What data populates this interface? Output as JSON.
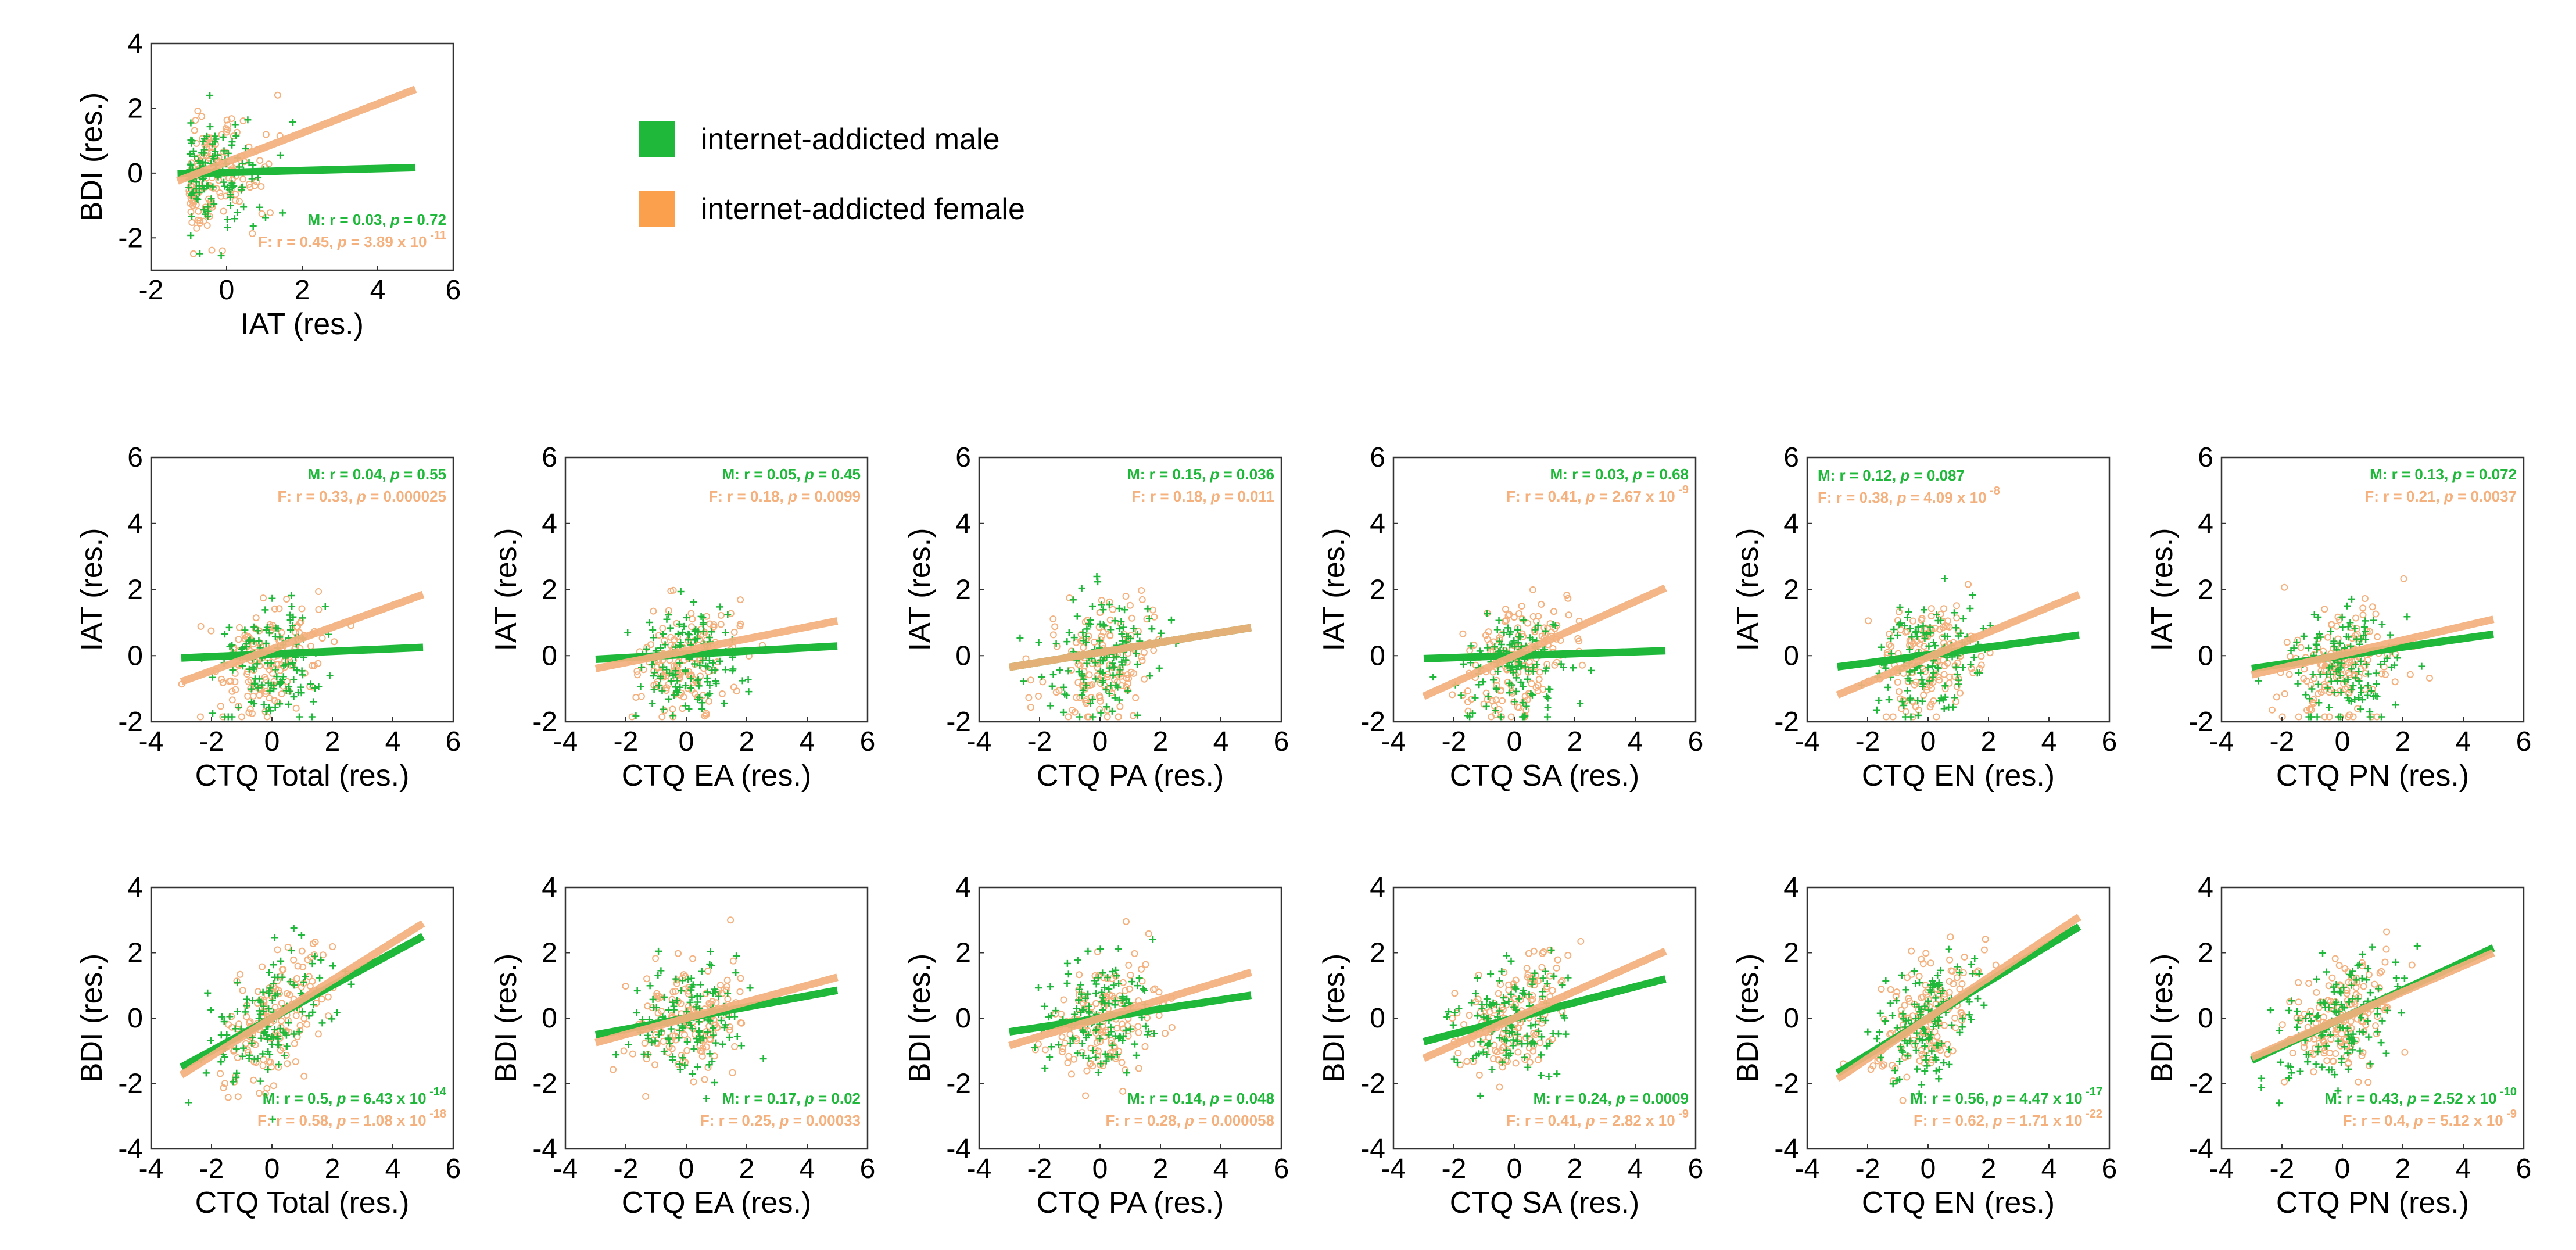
{
  "legend": {
    "male_label": "internet-addicted male",
    "female_label": "internet-addicted female",
    "male_color": "#1fb83a",
    "female_color": "#f4b07d",
    "swatch_female_color": "#fba04c"
  },
  "chart_data": [
    {
      "type": "scatter",
      "id": "p00",
      "xlabel": "IAT (res.)",
      "ylabel": "BDI (res.)",
      "xlim": [
        -2,
        6
      ],
      "ylim": [
        -3,
        4
      ],
      "xticks": [
        "-2",
        "0",
        "2",
        "4",
        "6"
      ],
      "yticks": [
        "-2",
        "0",
        "2",
        "4"
      ],
      "stats": {
        "position": "bottom-right",
        "male": {
          "prefix": "M: r = 0.03,  ",
          "p": "p",
          "value": " = 0.72",
          "exp": ""
        },
        "female": {
          "prefix": "F: r = 0.45,  ",
          "p": "p",
          "value": " = 3.89 x 10",
          "exp": "-11"
        }
      },
      "series": [
        {
          "name": "internet-addicted male",
          "line": [
            0.02,
            0.03
          ]
        },
        {
          "name": "internet-addicted female",
          "line": [
            0.34,
            0.45
          ]
        }
      ]
    },
    {
      "type": "scatter",
      "id": "p10",
      "xlabel": "CTQ Total (res.)",
      "ylabel": "IAT (res.)",
      "xlim": [
        -4,
        6
      ],
      "ylim": [
        -2,
        6
      ],
      "xticks": [
        "-4",
        "-2",
        "0",
        "2",
        "4",
        "6"
      ],
      "yticks": [
        "-2",
        "0",
        "2",
        "4",
        "6"
      ],
      "stats": {
        "position": "top-right",
        "male": {
          "prefix": "M: r = 0.04,  ",
          "p": "p",
          "value": " = 0.55",
          "exp": ""
        },
        "female": {
          "prefix": "F: r = 0.33,  ",
          "p": "p",
          "value": " = 0.000025",
          "exp": ""
        }
      },
      "series": [
        {
          "name": "internet-addicted male",
          "line": [
            0.05,
            0.04
          ]
        },
        {
          "name": "internet-addicted female",
          "line": [
            0.2,
            0.33
          ]
        }
      ]
    },
    {
      "type": "scatter",
      "id": "p11",
      "xlabel": "CTQ EA (res.)",
      "ylabel": "IAT (res.)",
      "xlim": [
        -4,
        6
      ],
      "ylim": [
        -2,
        6
      ],
      "xticks": [
        "-4",
        "-2",
        "0",
        "2",
        "4",
        "6"
      ],
      "yticks": [
        "-2",
        "0",
        "2",
        "4",
        "6"
      ],
      "stats": {
        "position": "top-right",
        "male": {
          "prefix": "M: r = 0.05,  ",
          "p": "p",
          "value": " = 0.45",
          "exp": ""
        },
        "female": {
          "prefix": "F: r = 0.18,  ",
          "p": "p",
          "value": " = 0.0099",
          "exp": ""
        }
      },
      "series": [
        {
          "name": "internet-addicted male",
          "line": [
            0.04,
            0.05
          ]
        },
        {
          "name": "internet-addicted female",
          "line": [
            0.15,
            0.18
          ]
        }
      ]
    },
    {
      "type": "scatter",
      "id": "p12",
      "xlabel": "CTQ PA (res.)",
      "ylabel": "IAT (res.)",
      "xlim": [
        -4,
        6
      ],
      "ylim": [
        -2,
        6
      ],
      "xticks": [
        "-4",
        "-2",
        "0",
        "2",
        "4",
        "6"
      ],
      "yticks": [
        "-2",
        "0",
        "2",
        "4",
        "6"
      ],
      "stats": {
        "position": "top-right",
        "male": {
          "prefix": "M: r = 0.15,  ",
          "p": "p",
          "value": " = 0.036",
          "exp": ""
        },
        "female": {
          "prefix": "F: r = 0.18,  ",
          "p": "p",
          "value": " = 0.011",
          "exp": ""
        }
      },
      "series": [
        {
          "name": "internet-addicted male",
          "line": [
            0.1,
            0.15
          ]
        },
        {
          "name": "internet-addicted female",
          "line": [
            0.1,
            0.15
          ]
        }
      ]
    },
    {
      "type": "scatter",
      "id": "p13",
      "xlabel": "CTQ SA (res.)",
      "ylabel": "IAT (res.)",
      "xlim": [
        -4,
        6
      ],
      "ylim": [
        -2,
        6
      ],
      "xticks": [
        "-4",
        "-2",
        "0",
        "2",
        "4",
        "6"
      ],
      "yticks": [
        "-2",
        "0",
        "2",
        "4",
        "6"
      ],
      "stats": {
        "position": "top-right",
        "male": {
          "prefix": "M: r = 0.03,  ",
          "p": "p",
          "value": " = 0.68",
          "exp": ""
        },
        "female": {
          "prefix": "F: r = 0.41,  ",
          "p": "p",
          "value": " = 2.67 x 10",
          "exp": "-9"
        }
      },
      "series": [
        {
          "name": "internet-addicted male",
          "line": [
            0.0,
            0.03
          ]
        },
        {
          "name": "internet-addicted female",
          "line": [
            0.0,
            0.41
          ]
        }
      ]
    },
    {
      "type": "scatter",
      "id": "p14",
      "xlabel": "CTQ EN (res.)",
      "ylabel": "IAT (res.)",
      "xlim": [
        -4,
        6
      ],
      "ylim": [
        -2,
        6
      ],
      "xticks": [
        "-4",
        "-2",
        "0",
        "2",
        "4",
        "6"
      ],
      "yticks": [
        "-2",
        "0",
        "2",
        "4",
        "6"
      ],
      "stats": {
        "position": "top-left",
        "male": {
          "prefix": "M: r = 0.12,  ",
          "p": "p",
          "value": " = 0.087",
          "exp": ""
        },
        "female": {
          "prefix": "F: r = 0.38,  ",
          "p": "p",
          "value": " = 4.09 x 10",
          "exp": "-8"
        }
      },
      "series": [
        {
          "name": "internet-addicted male",
          "line": [
            0.02,
            0.12
          ]
        },
        {
          "name": "internet-addicted female",
          "line": [
            -0.05,
            0.38
          ]
        }
      ]
    },
    {
      "type": "scatter",
      "id": "p15",
      "xlabel": "CTQ PN (res.)",
      "ylabel": "IAT (res.)",
      "xlim": [
        -4,
        6
      ],
      "ylim": [
        -2,
        6
      ],
      "xticks": [
        "-4",
        "-2",
        "0",
        "2",
        "4",
        "6"
      ],
      "yticks": [
        "-2",
        "0",
        "2",
        "4",
        "6"
      ],
      "stats": {
        "position": "top-right",
        "male": {
          "prefix": "M: r = 0.13,  ",
          "p": "p",
          "value": " = 0.072",
          "exp": ""
        },
        "female": {
          "prefix": "F: r = 0.21,  ",
          "p": "p",
          "value": " = 0.0037",
          "exp": ""
        }
      },
      "series": [
        {
          "name": "internet-addicted male",
          "line": [
            0.0,
            0.13
          ]
        },
        {
          "name": "internet-addicted female",
          "line": [
            0.05,
            0.21
          ]
        }
      ]
    },
    {
      "type": "scatter",
      "id": "p20",
      "xlabel": "CTQ Total (res.)",
      "ylabel": "BDI (res.)",
      "xlim": [
        -4,
        6
      ],
      "ylim": [
        -4,
        4
      ],
      "xticks": [
        "-4",
        "-2",
        "0",
        "2",
        "4",
        "6"
      ],
      "yticks": [
        "-4",
        "-2",
        "0",
        "2",
        "4"
      ],
      "stats": {
        "position": "bottom-right",
        "male": {
          "prefix": "M: r = 0.5,  ",
          "p": "p",
          "value": " = 6.43 x 10",
          "exp": "-14"
        },
        "female": {
          "prefix": "F: r = 0.58,  ",
          "p": "p",
          "value": " = 1.08 x 10",
          "exp": "-18"
        }
      },
      "series": [
        {
          "name": "internet-addicted male",
          "line": [
            0.0,
            0.5
          ]
        },
        {
          "name": "internet-addicted female",
          "line": [
            0.0,
            0.58
          ]
        }
      ]
    },
    {
      "type": "scatter",
      "id": "p21",
      "xlabel": "CTQ EA (res.)",
      "ylabel": "BDI (res.)",
      "xlim": [
        -4,
        6
      ],
      "ylim": [
        -4,
        4
      ],
      "xticks": [
        "-4",
        "-2",
        "0",
        "2",
        "4",
        "6"
      ],
      "yticks": [
        "-4",
        "-2",
        "0",
        "2",
        "4"
      ],
      "stats": {
        "position": "bottom-right",
        "male": {
          "prefix": "M: r = 0.17,  ",
          "p": "p",
          "value": " = 0.02",
          "exp": ""
        },
        "female": {
          "prefix": "F: r = 0.25,  ",
          "p": "p",
          "value": " = 0.00033",
          "exp": ""
        }
      },
      "series": [
        {
          "name": "internet-addicted male",
          "line": [
            0.0,
            0.17
          ]
        },
        {
          "name": "internet-addicted female",
          "line": [
            0.0,
            0.25
          ]
        }
      ]
    },
    {
      "type": "scatter",
      "id": "p22",
      "xlabel": "CTQ PA (res.)",
      "ylabel": "BDI (res.)",
      "xlim": [
        -4,
        6
      ],
      "ylim": [
        -4,
        4
      ],
      "xticks": [
        "-4",
        "-2",
        "0",
        "2",
        "4",
        "6"
      ],
      "yticks": [
        "-4",
        "-2",
        "0",
        "2",
        "4"
      ],
      "stats": {
        "position": "bottom-right",
        "male": {
          "prefix": "M: r = 0.14,  ",
          "p": "p",
          "value": " = 0.048",
          "exp": ""
        },
        "female": {
          "prefix": "F: r = 0.28,  ",
          "p": "p",
          "value": " = 0.000058",
          "exp": ""
        }
      },
      "series": [
        {
          "name": "internet-addicted male",
          "line": [
            0.0,
            0.14
          ]
        },
        {
          "name": "internet-addicted female",
          "line": [
            0.0,
            0.28
          ]
        }
      ]
    },
    {
      "type": "scatter",
      "id": "p23",
      "xlabel": "CTQ SA (res.)",
      "ylabel": "BDI (res.)",
      "xlim": [
        -4,
        6
      ],
      "ylim": [
        -4,
        4
      ],
      "xticks": [
        "-4",
        "-2",
        "0",
        "2",
        "4",
        "6"
      ],
      "yticks": [
        "-4",
        "-2",
        "0",
        "2",
        "4"
      ],
      "stats": {
        "position": "bottom-right",
        "male": {
          "prefix": "M: r = 0.24,  ",
          "p": "p",
          "value": " = 0.0009",
          "exp": ""
        },
        "female": {
          "prefix": "F: r = 0.41,  ",
          "p": "p",
          "value": " = 2.82 x 10",
          "exp": "-9"
        }
      },
      "series": [
        {
          "name": "internet-addicted male",
          "line": [
            0.0,
            0.24
          ]
        },
        {
          "name": "internet-addicted female",
          "line": [
            0.0,
            0.41
          ]
        }
      ]
    },
    {
      "type": "scatter",
      "id": "p24",
      "xlabel": "CTQ EN (res.)",
      "ylabel": "BDI (res.)",
      "xlim": [
        -4,
        6
      ],
      "ylim": [
        -4,
        4
      ],
      "xticks": [
        "-4",
        "-2",
        "0",
        "2",
        "4",
        "6"
      ],
      "yticks": [
        "-4",
        "-2",
        "0",
        "2",
        "4"
      ],
      "stats": {
        "position": "bottom-right",
        "male": {
          "prefix": "M: r = 0.56,  ",
          "p": "p",
          "value": " = 4.47 x 10",
          "exp": "-17"
        },
        "female": {
          "prefix": "F: r = 0.62,  ",
          "p": "p",
          "value": " = 1.71 x 10",
          "exp": "-22"
        }
      },
      "series": [
        {
          "name": "internet-addicted male",
          "line": [
            0.0,
            0.56
          ]
        },
        {
          "name": "internet-addicted female",
          "line": [
            0.0,
            0.62
          ]
        }
      ]
    },
    {
      "type": "scatter",
      "id": "p25",
      "xlabel": "CTQ PN (res.)",
      "ylabel": "BDI (res.)",
      "xlim": [
        -4,
        6
      ],
      "ylim": [
        -4,
        4
      ],
      "xticks": [
        "-4",
        "-2",
        "0",
        "2",
        "4",
        "6"
      ],
      "yticks": [
        "-4",
        "-2",
        "0",
        "2",
        "4"
      ],
      "stats": {
        "position": "bottom-right",
        "male": {
          "prefix": "M: r = 0.43,  ",
          "p": "p",
          "value": " = 2.52 x 10",
          "exp": "-10"
        },
        "female": {
          "prefix": "F: r = 0.4,  ",
          "p": "p",
          "value": " = 5.12 x 10",
          "exp": "-9"
        }
      },
      "series": [
        {
          "name": "internet-addicted male",
          "line": [
            0.0,
            0.43
          ]
        },
        {
          "name": "internet-addicted female",
          "line": [
            0.0,
            0.4
          ]
        }
      ]
    }
  ]
}
